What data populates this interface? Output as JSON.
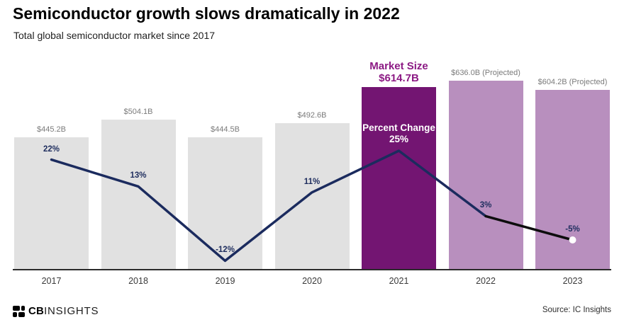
{
  "header": {
    "title": "Semiconductor growth slows dramatically in 2022",
    "subtitle": "Total global semiconductor market since 2017"
  },
  "footer": {
    "logo_cb": "CB",
    "logo_insights": "INSIGHTS",
    "source": "Source: IC Insights"
  },
  "colors": {
    "bar_default": "#e1e1e1",
    "bar_highlight": "#731572",
    "bar_projected": "#b88fbe",
    "line": "#1b2b5e",
    "line_final_segment": "#0d0d0d",
    "end_dot": "#ffffff",
    "value_label": "#7b7b7b",
    "percent_label": "#1e2d5e",
    "callout_text": "#8c1a84"
  },
  "chart_data": {
    "type": "bar",
    "subtype": "bar-line-combo",
    "title": "Semiconductor growth slows dramatically in 2022",
    "subtitle": "Total global semiconductor market since 2017",
    "categories": [
      "2017",
      "2018",
      "2019",
      "2020",
      "2021",
      "2022",
      "2023"
    ],
    "projected": [
      false,
      false,
      false,
      false,
      false,
      true,
      true
    ],
    "series": [
      {
        "name": "Market Size ($B)",
        "type": "bar",
        "values": [
          445.2,
          504.1,
          444.5,
          492.6,
          614.7,
          636.0,
          604.2
        ],
        "labels": [
          "$445.2B",
          "$504.1B",
          "$444.5B",
          "$492.6B",
          "$614.7B",
          "$636.0B (Projected)",
          "$604.2B (Projected)"
        ]
      },
      {
        "name": "Percent Change",
        "type": "line",
        "values": [
          22,
          13,
          -12,
          11,
          25,
          3,
          -5
        ],
        "labels": [
          "22%",
          "13%",
          "-12%",
          "11%",
          "25%",
          "3%",
          "-5%"
        ]
      }
    ],
    "highlight": {
      "index": 4,
      "market_size_callout": [
        "Market Size",
        "$614.7B"
      ],
      "percent_change_callout": [
        "Percent Change",
        "25%"
      ]
    },
    "xlabel": "",
    "ylabel": "",
    "grid": false,
    "legend": false,
    "y_axis_labels_visible": false
  }
}
